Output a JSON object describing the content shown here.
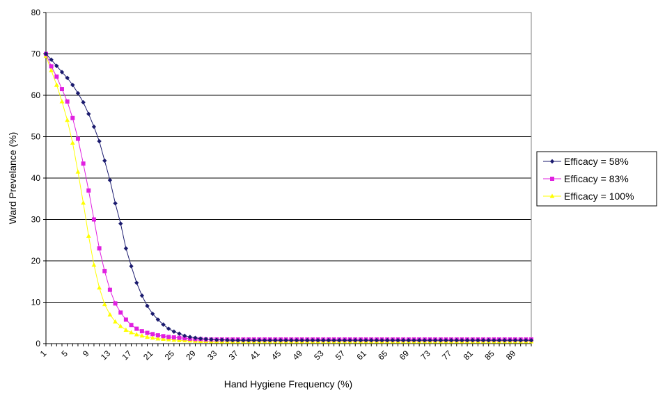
{
  "chart_data": {
    "type": "line",
    "title": "",
    "xlabel": "Hand Hygiene Frequency (%)",
    "ylabel": "Ward Prevelance (%)",
    "xlim": [
      1,
      92
    ],
    "ylim": [
      0,
      80
    ],
    "y_ticks": [
      0,
      10,
      20,
      30,
      40,
      50,
      60,
      70,
      80
    ],
    "x_tick_labels": [
      "1",
      "5",
      "9",
      "13",
      "17",
      "21",
      "25",
      "29",
      "33",
      "37",
      "41",
      "45",
      "49",
      "53",
      "57",
      "61",
      "65",
      "69",
      "73",
      "77",
      "81",
      "85",
      "89"
    ],
    "grid": "horizontal",
    "legend_position": "right",
    "x": [
      1,
      2,
      3,
      4,
      5,
      6,
      7,
      8,
      9,
      10,
      11,
      12,
      13,
      14,
      15,
      16,
      17,
      18,
      19,
      20,
      21,
      22,
      23,
      24,
      25,
      26,
      27,
      28,
      29,
      30,
      31,
      32,
      33,
      34,
      35,
      36,
      37,
      38,
      39,
      40,
      41,
      42,
      43,
      44,
      45,
      46,
      47,
      48,
      49,
      50,
      51,
      52,
      53,
      54,
      55,
      56,
      57,
      58,
      59,
      60,
      61,
      62,
      63,
      64,
      65,
      66,
      67,
      68,
      69,
      70,
      71,
      72,
      73,
      74,
      75,
      76,
      77,
      78,
      79,
      80,
      81,
      82,
      83,
      84,
      85,
      86,
      87,
      88,
      89,
      90,
      91,
      92
    ],
    "series": [
      {
        "name": "Efficacy = 58%",
        "color": "#1a1a6e",
        "marker": "diamond",
        "values": [
          70.0,
          68.6,
          67.1,
          65.6,
          64.2,
          62.5,
          60.5,
          58.3,
          55.5,
          52.4,
          48.9,
          44.2,
          39.5,
          33.9,
          29.0,
          23.0,
          18.7,
          14.7,
          11.6,
          9.1,
          7.2,
          5.8,
          4.6,
          3.6,
          2.9,
          2.4,
          1.9,
          1.6,
          1.4,
          1.2,
          1.1,
          1.0,
          0.9,
          0.9,
          0.85,
          0.8,
          0.8,
          0.8,
          0.8,
          0.8,
          0.8,
          0.8,
          0.8,
          0.8,
          0.8,
          0.8,
          0.8,
          0.8,
          0.8,
          0.8,
          0.8,
          0.8,
          0.8,
          0.8,
          0.8,
          0.8,
          0.8,
          0.8,
          0.8,
          0.8,
          0.8,
          0.8,
          0.8,
          0.8,
          0.8,
          0.8,
          0.8,
          0.8,
          0.8,
          0.8,
          0.8,
          0.8,
          0.8,
          0.8,
          0.8,
          0.8,
          0.8,
          0.8,
          0.8,
          0.8,
          0.8,
          0.8,
          0.8,
          0.8,
          0.8,
          0.8,
          0.8,
          0.8,
          0.8,
          0.8,
          0.8,
          0.8
        ]
      },
      {
        "name": "Efficacy = 83%",
        "color": "#e020e0",
        "marker": "square",
        "values": [
          70.0,
          67.0,
          64.5,
          61.5,
          58.5,
          54.5,
          49.5,
          43.5,
          37.0,
          30.0,
          23.0,
          17.5,
          13.0,
          9.7,
          7.5,
          5.8,
          4.5,
          3.6,
          3.0,
          2.6,
          2.3,
          2.0,
          1.8,
          1.6,
          1.5,
          1.4,
          1.3,
          1.2,
          1.1,
          1.1,
          1.0,
          1.0,
          1.0,
          1.0,
          1.0,
          1.0,
          1.0,
          1.0,
          1.0,
          1.0,
          1.0,
          1.0,
          1.0,
          1.0,
          1.0,
          1.0,
          1.0,
          1.0,
          1.0,
          1.0,
          1.0,
          1.0,
          1.0,
          1.0,
          1.0,
          1.0,
          1.0,
          1.0,
          1.0,
          1.0,
          1.0,
          1.0,
          1.0,
          1.0,
          1.0,
          1.0,
          1.0,
          1.0,
          1.0,
          1.0,
          1.0,
          1.0,
          1.0,
          1.0,
          1.0,
          1.0,
          1.0,
          1.0,
          1.0,
          1.0,
          1.0,
          1.0,
          1.0,
          1.0,
          1.0,
          1.0,
          1.0,
          1.0,
          1.0,
          1.0,
          1.0,
          1.0
        ]
      },
      {
        "name": "Efficacy = 100%",
        "color": "#ffff00",
        "marker": "triangle",
        "values": [
          69.5,
          66.0,
          62.5,
          58.5,
          54.0,
          48.5,
          41.5,
          34.0,
          26.0,
          19.0,
          13.5,
          9.5,
          7.0,
          5.3,
          4.2,
          3.3,
          2.7,
          2.2,
          1.9,
          1.6,
          1.4,
          1.2,
          1.1,
          1.0,
          0.9,
          0.8,
          0.75,
          0.7,
          0.65,
          0.6,
          0.6,
          0.55,
          0.55,
          0.5,
          0.5,
          0.5,
          0.5,
          0.5,
          0.5,
          0.5,
          0.5,
          0.5,
          0.5,
          0.5,
          0.5,
          0.5,
          0.5,
          0.5,
          0.5,
          0.5,
          0.5,
          0.5,
          0.5,
          0.5,
          0.5,
          0.5,
          0.5,
          0.5,
          0.5,
          0.5,
          0.5,
          0.5,
          0.5,
          0.5,
          0.5,
          0.5,
          0.5,
          0.5,
          0.5,
          0.5,
          0.5,
          0.5,
          0.5,
          0.5,
          0.5,
          0.5,
          0.5,
          0.5,
          0.5,
          0.5,
          0.5,
          0.5,
          0.5,
          0.5,
          0.5,
          0.5,
          0.5,
          0.5,
          0.5,
          0.5,
          0.5,
          0.5
        ]
      }
    ]
  }
}
